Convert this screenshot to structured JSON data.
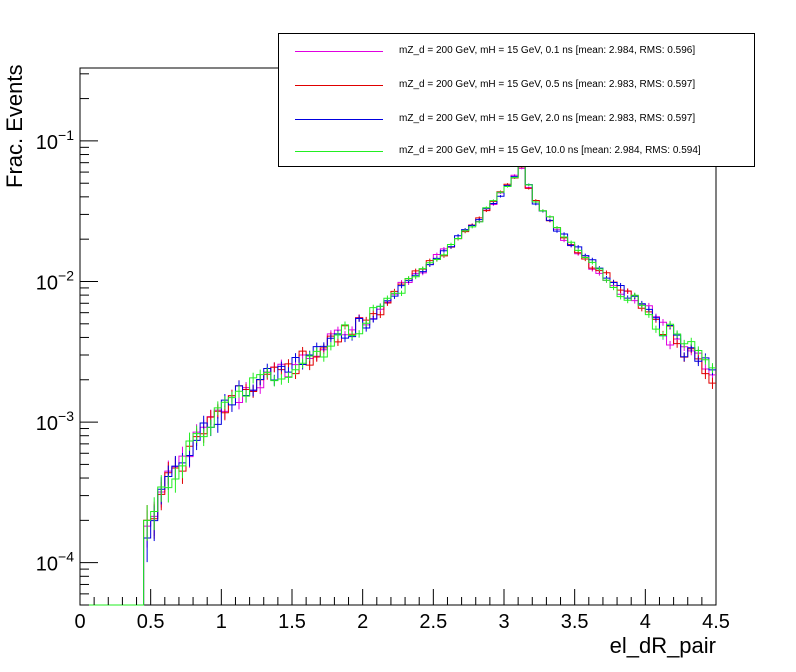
{
  "chart_data": {
    "type": "line",
    "style": "histogram-step-with-error-bars",
    "title": "",
    "xlabel": "el_dR_pair",
    "ylabel": "Frac. Events",
    "xlim": [
      0,
      4.5
    ],
    "ylim": [
      5e-05,
      0.33
    ],
    "yscale": "log",
    "grid": false,
    "legend_position": "top-right",
    "x_ticks": [
      "0",
      "0.5",
      "1",
      "1.5",
      "2",
      "2.5",
      "3",
      "3.5",
      "4",
      "4.5"
    ],
    "y_ticks": [
      {
        "base": "10",
        "exp": "−4",
        "value": 0.0001
      },
      {
        "base": "10",
        "exp": "−3",
        "value": 0.001
      },
      {
        "base": "10",
        "exp": "−2",
        "value": 0.01
      },
      {
        "base": "10",
        "exp": "−1",
        "value": 0.1
      }
    ],
    "bins": {
      "start": 0,
      "width": 0.05
    },
    "series": [
      {
        "name": "mZ_d = 200 GeV, mH = 15 GeV, 0.1 ns [mean: 2.984, RMS: 0.596]",
        "color": "#e000e0"
      },
      {
        "name": "mZ_d = 200 GeV, mH = 15 GeV, 0.5 ns [mean: 2.983, RMS: 0.597]",
        "color": "#e00000"
      },
      {
        "name": "mZ_d = 200 GeV, mH = 15 GeV, 2.0 ns [mean: 2.983, RMS: 0.597]",
        "color": "#0000e0"
      },
      {
        "name": "mZ_d = 200 GeV, mH = 15 GeV, 10.0 ns [mean: 2.984, RMS: 0.594]",
        "color": "#22ee22"
      }
    ],
    "profile": {
      "peak_x": 3.125,
      "peak_y": 0.065,
      "left_anchors": [
        [
          0.45,
          0.00015
        ],
        [
          0.6,
          0.00035
        ],
        [
          0.8,
          0.0007
        ],
        [
          1.0,
          0.0012
        ],
        [
          1.2,
          0.0018
        ],
        [
          1.5,
          0.0025
        ],
        [
          1.7,
          0.0033
        ],
        [
          2.0,
          0.0052
        ],
        [
          2.5,
          0.014
        ],
        [
          2.8,
          0.026
        ],
        [
          3.0,
          0.045
        ],
        [
          3.125,
          0.065
        ]
      ],
      "right_anchors": [
        [
          3.125,
          0.065
        ],
        [
          3.2,
          0.04
        ],
        [
          3.4,
          0.022
        ],
        [
          3.6,
          0.014
        ],
        [
          3.8,
          0.009
        ],
        [
          4.0,
          0.0065
        ],
        [
          4.2,
          0.004
        ],
        [
          4.4,
          0.0028
        ],
        [
          4.5,
          0.002
        ]
      ]
    }
  }
}
